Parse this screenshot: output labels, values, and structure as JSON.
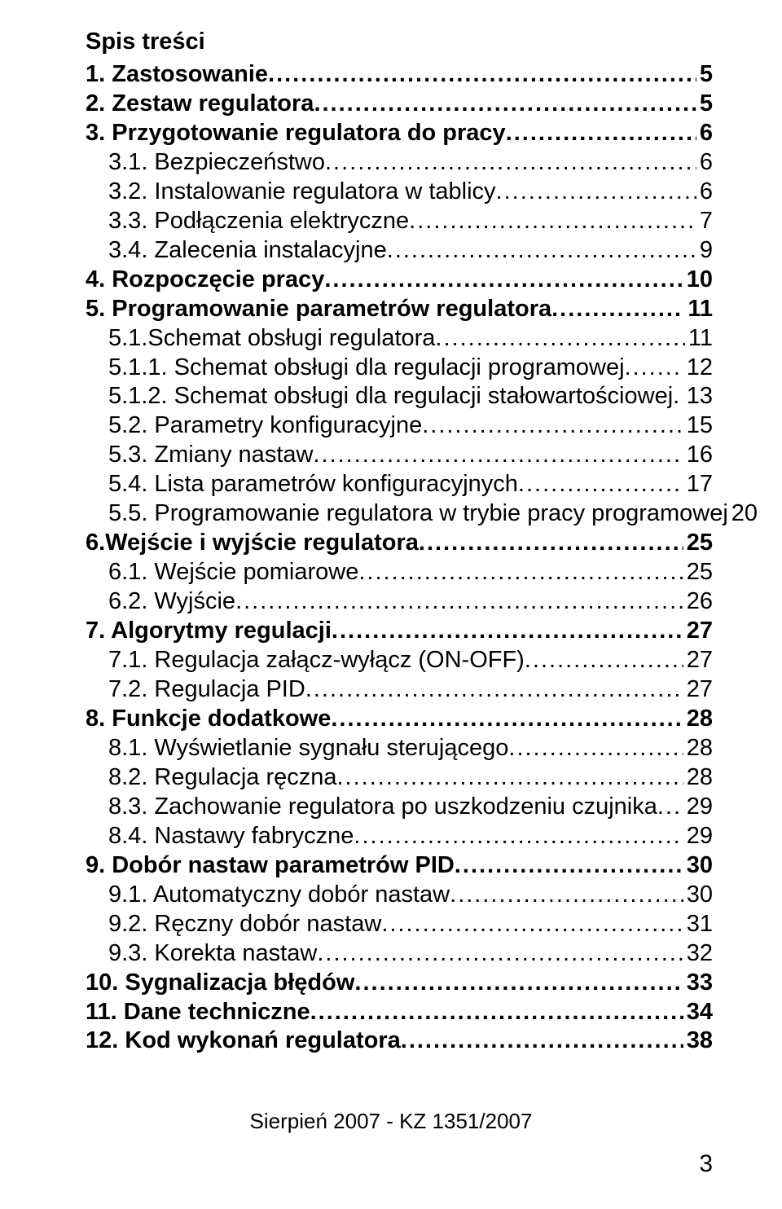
{
  "toc": {
    "title": "Spis treści",
    "entries": [
      {
        "label": "1. Zastosowanie",
        "page": "5",
        "bold": true,
        "indent": false
      },
      {
        "label": "2. Zestaw regulatora",
        "page": "5",
        "bold": true,
        "indent": false
      },
      {
        "label": "3. Przygotowanie regulatora do pracy",
        "page": "6",
        "bold": true,
        "indent": false
      },
      {
        "label": "3.1. Bezpieczeństwo",
        "page": "6",
        "bold": false,
        "indent": true
      },
      {
        "label": "3.2. Instalowanie regulatora w tablicy",
        "page": "6",
        "bold": false,
        "indent": true
      },
      {
        "label": "3.3. Podłączenia elektryczne",
        "page": "7",
        "bold": false,
        "indent": true
      },
      {
        "label": "3.4. Zalecenia instalacyjne",
        "page": "9",
        "bold": false,
        "indent": true
      },
      {
        "label": "4. Rozpoczęcie pracy",
        "page": "10",
        "bold": true,
        "indent": false
      },
      {
        "label": "5. Programowanie parametrów regulatora",
        "page": "11",
        "bold": true,
        "indent": false
      },
      {
        "label": "5.1.Schemat obsługi regulatora",
        "page": "11",
        "bold": false,
        "indent": true
      },
      {
        "label": "5.1.1. Schemat obsługi dla regulacji programowej",
        "page": "12",
        "bold": false,
        "indent": true
      },
      {
        "label": "5.1.2. Schemat obsługi dla regulacji stałowartościowej",
        "page": "13",
        "bold": false,
        "indent": true
      },
      {
        "label": "5.2. Parametry konfiguracyjne",
        "page": "15",
        "bold": false,
        "indent": true
      },
      {
        "label": "5.3. Zmiany nastaw",
        "page": "16",
        "bold": false,
        "indent": true
      },
      {
        "label": "5.4. Lista parametrów konfiguracyjnych",
        "page": "17",
        "bold": false,
        "indent": true
      },
      {
        "label": "5.5. Programowanie regulatora w trybie pracy programowej",
        "page": "20",
        "bold": false,
        "indent": true
      },
      {
        "label": "6.Wejście i wyjście regulatora",
        "page": "25",
        "bold": true,
        "indent": false
      },
      {
        "label": "6.1. Wejście pomiarowe",
        "page": "25",
        "bold": false,
        "indent": true
      },
      {
        "label": "6.2. Wyjście",
        "page": "26",
        "bold": false,
        "indent": true
      },
      {
        "label": "7. Algorytmy regulacji",
        "page": "27",
        "bold": true,
        "indent": false
      },
      {
        "label": "7.1. Regulacja załącz-wyłącz (ON-OFF)",
        "page": "27",
        "bold": false,
        "indent": true
      },
      {
        "label": "7.2. Regulacja PID",
        "page": "27",
        "bold": false,
        "indent": true
      },
      {
        "label": "8. Funkcje dodatkowe",
        "page": "28",
        "bold": true,
        "indent": false
      },
      {
        "label": "8.1. Wyświetlanie sygnału sterującego",
        "page": "28",
        "bold": false,
        "indent": true
      },
      {
        "label": "8.2. Regulacja ręczna",
        "page": "28",
        "bold": false,
        "indent": true
      },
      {
        "label": "8.3. Zachowanie regulatora po uszkodzeniu czujnika",
        "page": "29",
        "bold": false,
        "indent": true
      },
      {
        "label": "8.4. Nastawy fabryczne",
        "page": "29",
        "bold": false,
        "indent": true
      },
      {
        "label": "9. Dobór nastaw parametrów PID",
        "page": "30",
        "bold": true,
        "indent": false
      },
      {
        "label": "9.1. Automatyczny dobór nastaw",
        "page": "30",
        "bold": false,
        "indent": true
      },
      {
        "label": "9.2. Ręczny dobór nastaw",
        "page": "31",
        "bold": false,
        "indent": true
      },
      {
        "label": "9.3. Korekta nastaw",
        "page": "32",
        "bold": false,
        "indent": true
      },
      {
        "label": "10. Sygnalizacja błędów",
        "page": "33",
        "bold": true,
        "indent": false
      },
      {
        "label": "11. Dane techniczne",
        "page": "34",
        "bold": true,
        "indent": false
      },
      {
        "label": "12. Kod wykonań regulatora",
        "page": "38",
        "bold": true,
        "indent": false
      }
    ]
  },
  "footer": "Sierpień 2007 - KZ 1351/2007",
  "page_number": "3"
}
